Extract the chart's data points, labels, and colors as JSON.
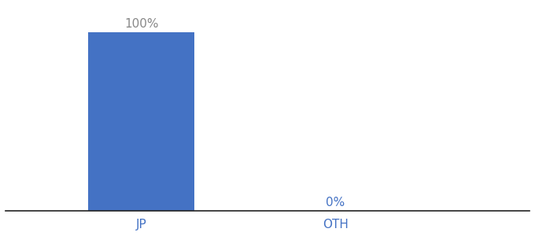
{
  "categories": [
    "JP",
    "OTH"
  ],
  "values": [
    100,
    0
  ],
  "bar_color": "#4472c4",
  "label_color_jp": "#888888",
  "label_color_oth": "#4472c4",
  "tick_color": "#4472c4",
  "bar_labels": [
    "100%",
    "0%"
  ],
  "ylim": [
    0,
    115
  ],
  "background_color": "#ffffff",
  "axis_line_color": "#222222",
  "label_fontsize": 11,
  "tick_fontsize": 11,
  "bar_width": 0.55,
  "x_positions": [
    1,
    2
  ],
  "xlim": [
    0.3,
    3.0
  ]
}
